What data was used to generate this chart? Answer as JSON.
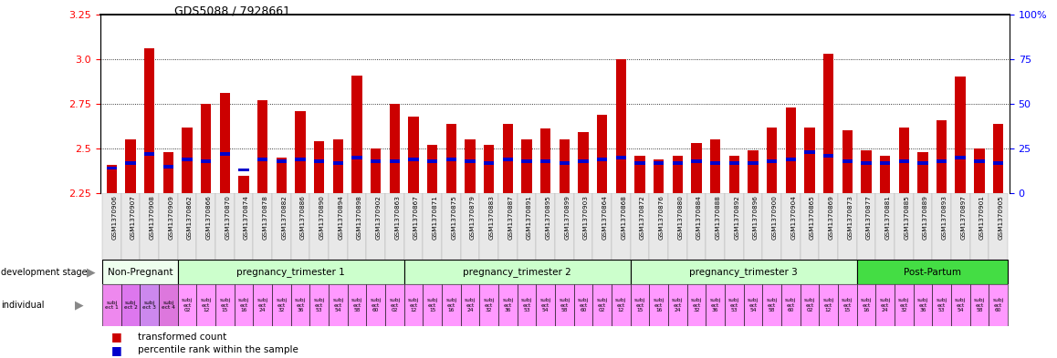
{
  "title": "GDS5088 / 7928661",
  "sample_labels": [
    "GSM1370906",
    "GSM1370907",
    "GSM1370908",
    "GSM1370909",
    "GSM1370862",
    "GSM1370866",
    "GSM1370870",
    "GSM1370874",
    "GSM1370878",
    "GSM1370882",
    "GSM1370886",
    "GSM1370890",
    "GSM1370894",
    "GSM1370898",
    "GSM1370902",
    "GSM1370863",
    "GSM1370867",
    "GSM1370871",
    "GSM1370875",
    "GSM1370879",
    "GSM1370883",
    "GSM1370887",
    "GSM1370891",
    "GSM1370895",
    "GSM1370899",
    "GSM1370903",
    "GSM1370864",
    "GSM1370868",
    "GSM1370872",
    "GSM1370876",
    "GSM1370880",
    "GSM1370884",
    "GSM1370888",
    "GSM1370892",
    "GSM1370896",
    "GSM1370900",
    "GSM1370904",
    "GSM1370865",
    "GSM1370869",
    "GSM1370873",
    "GSM1370877",
    "GSM1370881",
    "GSM1370885",
    "GSM1370889",
    "GSM1370893",
    "GSM1370897",
    "GSM1370901",
    "GSM1370905"
  ],
  "red_values": [
    2.41,
    2.55,
    3.06,
    2.48,
    2.62,
    2.75,
    2.81,
    2.35,
    2.77,
    2.45,
    2.71,
    2.54,
    2.55,
    2.91,
    2.5,
    2.75,
    2.68,
    2.52,
    2.64,
    2.55,
    2.52,
    2.64,
    2.55,
    2.61,
    2.55,
    2.59,
    2.69,
    3.0,
    2.46,
    2.44,
    2.46,
    2.53,
    2.55,
    2.46,
    2.49,
    2.62,
    2.73,
    2.62,
    3.03,
    2.6,
    2.49,
    2.46,
    2.62,
    2.48,
    2.66,
    2.9,
    2.5,
    2.64
  ],
  "blue_values": [
    14,
    17,
    22,
    15,
    19,
    18,
    22,
    13,
    19,
    18,
    19,
    18,
    17,
    20,
    18,
    18,
    19,
    18,
    19,
    18,
    17,
    19,
    18,
    18,
    17,
    18,
    19,
    20,
    17,
    17,
    17,
    18,
    17,
    17,
    17,
    18,
    19,
    23,
    21,
    18,
    17,
    17,
    18,
    17,
    18,
    20,
    18,
    17
  ],
  "y_min": 2.25,
  "y_max": 3.25,
  "y_ticks": [
    2.25,
    2.5,
    2.75,
    3.0,
    3.25
  ],
  "y2_ticks": [
    0,
    25,
    50,
    75,
    100
  ],
  "bar_color": "#cc0000",
  "blue_color": "#0000cc",
  "grid_lines": [
    2.5,
    2.75,
    3.0
  ],
  "groups": [
    {
      "label": "Non-Pregnant",
      "start": 0,
      "end": 4,
      "color": "#eeffee"
    },
    {
      "label": "pregnancy_trimester 1",
      "start": 4,
      "end": 16,
      "color": "#ccffcc"
    },
    {
      "label": "pregnancy_trimester 2",
      "start": 16,
      "end": 28,
      "color": "#ccffcc"
    },
    {
      "label": "pregnancy_trimester 3",
      "start": 28,
      "end": 40,
      "color": "#ccffcc"
    },
    {
      "label": "Post-Partum",
      "start": 40,
      "end": 48,
      "color": "#44dd44"
    }
  ],
  "indiv_labels": [
    "subj\nect 1",
    "subj\nect 2",
    "subj\nect 3",
    "subj\nect 4",
    "subj\nect\n02",
    "subj\nect\n12",
    "subj\nect\n15",
    "subj\nect\n16",
    "subj\nect\n24",
    "subj\nect\n32",
    "subj\nect\n36",
    "subj\nect\n53",
    "subj\nect\n54",
    "subj\nect\n58",
    "subj\nect\n60",
    "subj\nect\n02",
    "subj\nect\n12",
    "subj\nect\n15",
    "subj\nect\n16",
    "subj\nect\n24",
    "subj\nect\n32",
    "subj\nect\n36",
    "subj\nect\n53",
    "subj\nect\n54",
    "subj\nect\n58",
    "subj\nect\n60",
    "subj\nect\n02",
    "subj\nect\n12",
    "subj\nect\n15",
    "subj\nect\n16",
    "subj\nect\n24",
    "subj\nect\n32",
    "subj\nect\n36",
    "subj\nect\n53",
    "subj\nect\n54",
    "subj\nect\n58",
    "subj\nect\n60",
    "subj\nect\n02",
    "subj\nect\n12",
    "subj\nect\n15",
    "subj\nect\n16",
    "subj\nect\n24",
    "subj\nect\n32",
    "subj\nect\n36",
    "subj\nect\n53",
    "subj\nect\n54",
    "subj\nect\n58",
    "subj\nect\n60"
  ],
  "indiv_colors_np": [
    "#ee88ee",
    "#dd77ee",
    "#cc88ee",
    "#dd77dd"
  ],
  "indiv_color_other": "#ff99ff",
  "bg_color": "#ffffff",
  "label_area_color": "#dddddd",
  "stage_label": "development stage",
  "indiv_label": "individual",
  "legend_red": "transformed count",
  "legend_blue": "percentile rank within the sample"
}
